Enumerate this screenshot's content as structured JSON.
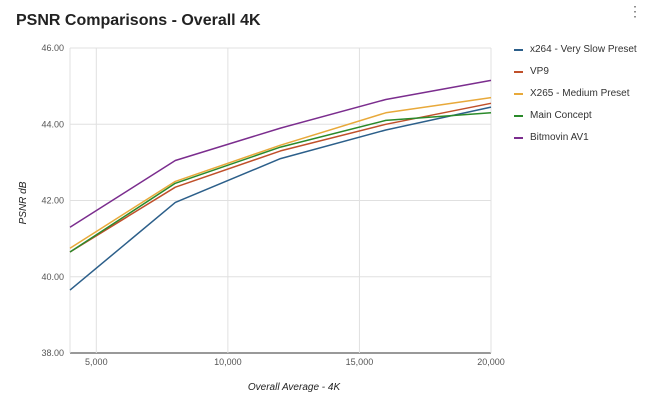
{
  "header": {
    "title": "PSNR Comparisons - Overall 4K",
    "menu_icon": "more-vert-icon"
  },
  "chart_data": {
    "type": "line",
    "title": "PSNR Comparisons - Overall 4K",
    "xlabel": "Overall Average - 4K",
    "ylabel": "PSNR dB",
    "xlim": [
      4000,
      20000
    ],
    "ylim": [
      38,
      46
    ],
    "x_ticks": [
      5000,
      10000,
      15000,
      20000
    ],
    "x_tick_labels": [
      "5,000",
      "10,000",
      "15,000",
      "20,000"
    ],
    "y_ticks": [
      38,
      40,
      42,
      44,
      46
    ],
    "y_tick_labels": [
      "38.00",
      "40.00",
      "42.00",
      "44.00",
      "46.00"
    ],
    "grid": true,
    "legend_position": "right",
    "series": [
      {
        "name": "x264 - Very Slow Preset",
        "color": "#2c5f8a",
        "x": [
          4000,
          8000,
          12000,
          16000,
          20000
        ],
        "y": [
          39.65,
          41.95,
          43.1,
          43.85,
          44.45
        ]
      },
      {
        "name": "VP9",
        "color": "#c0502a",
        "x": [
          4000,
          8000,
          12000,
          16000,
          20000
        ],
        "y": [
          40.65,
          42.35,
          43.3,
          44.0,
          44.55
        ]
      },
      {
        "name": "X265 - Medium Preset",
        "color": "#e8a93a",
        "x": [
          4000,
          8000,
          12000,
          16000,
          20000
        ],
        "y": [
          40.75,
          42.5,
          43.45,
          44.3,
          44.7
        ]
      },
      {
        "name": "Main Concept",
        "color": "#2a8a2a",
        "x": [
          4000,
          8000,
          12000,
          16000,
          20000
        ],
        "y": [
          40.65,
          42.45,
          43.4,
          44.1,
          44.3
        ]
      },
      {
        "name": "Bitmovin AV1",
        "color": "#7b2d8e",
        "x": [
          4000,
          8000,
          12000,
          16000,
          20000
        ],
        "y": [
          41.3,
          43.05,
          43.9,
          44.65,
          45.15
        ]
      }
    ]
  }
}
